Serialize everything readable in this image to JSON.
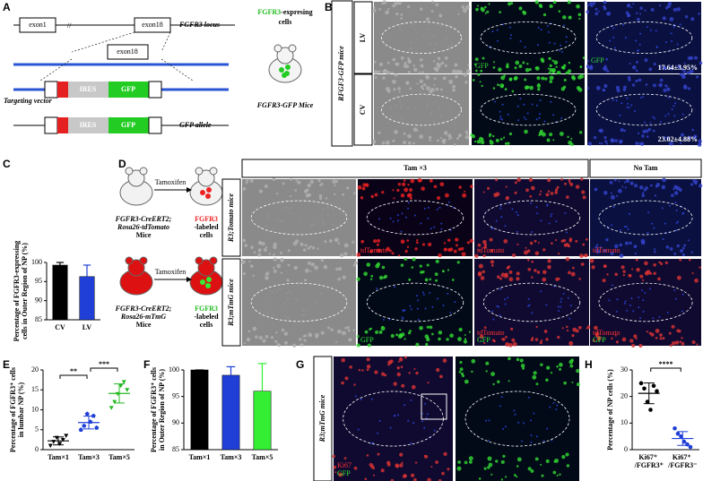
{
  "panel_labels": [
    "A",
    "B",
    "C",
    "D",
    "E",
    "F",
    "G",
    "H"
  ],
  "panel_a": {
    "exon1": "exon1",
    "exon18": "exon18",
    "locus": "FGFR3 locus",
    "exon18_vector": "exon18",
    "ires": [
      "IRES",
      "IRES"
    ],
    "gfp": [
      "GFP",
      "GFP"
    ],
    "targeting_vector": "Targeting vector",
    "gfp_allele": "GFP allele",
    "cells": [
      "FGFR3",
      "-expresing",
      "cells"
    ],
    "mice": "FGFR3-GFP Mice"
  },
  "panel_b": {
    "side_label": "RFGF3-GFP mice",
    "rows": [
      "LV",
      "CV"
    ],
    "channels": [
      "GFP",
      "GFP"
    ],
    "stats": [
      "17.64±3.95%",
      "23.02±4.88%"
    ]
  },
  "panel_d": {
    "mouse1": [
      "FGFR3-CreERT2;",
      "Rosa26-tdTomato",
      "Mice"
    ],
    "mouse2": [
      "FGFR3-CreERT2;",
      "Rosa26-mTmG",
      "Mice"
    ],
    "tamoxifen": [
      "Tamoxifen",
      "Tamoxifen"
    ],
    "labeled1": [
      "FGFR3",
      "-labeled",
      "cells"
    ],
    "labeled2": [
      "FGFR3",
      "-labeled",
      "cells"
    ],
    "headers": [
      "Tam ×3",
      "No Tam"
    ],
    "rows": [
      "R3;Tomato mice",
      "R3;mTmG mice"
    ],
    "row1_channels": [
      [
        "tdTomato"
      ],
      [
        "tdTomato"
      ],
      [
        "tdTomato"
      ]
    ],
    "row2_channels": [
      [
        "GFP"
      ],
      [
        "tdTomato",
        "GFP"
      ],
      [
        "tdTomato",
        "GFP"
      ]
    ]
  },
  "panel_g": {
    "side_label": "R3;mTmG mice",
    "channels": [
      "Ki67",
      "GFP"
    ]
  },
  "chart_data": [
    {
      "type": "bar",
      "y_label": [
        "Percentage of FGFR3-expressing",
        "cells in Outer Region of NP (%)"
      ],
      "categories": [
        "CV",
        "LV"
      ],
      "values": [
        99.3,
        96.3
      ],
      "errors": [
        0.7,
        3.0
      ],
      "colors": [
        "#000000",
        "#1f3fd6"
      ],
      "ylim": [
        85,
        100
      ],
      "yticks": [
        85,
        90,
        95,
        100
      ]
    },
    {
      "type": "strip",
      "y_label": [
        "Percentage of FGFR3⁺ cells",
        "in lumbar NP (%)"
      ],
      "categories": [
        "Tam×1",
        "Tam×3",
        "Tam×5"
      ],
      "points": [
        [
          1.0,
          2.0,
          3.0,
          1.5,
          2.5,
          3.5
        ],
        [
          5.0,
          6.0,
          9.0,
          7.0,
          8.5,
          5.5
        ],
        [
          10.5,
          12.0,
          14.0,
          16.0,
          17.0,
          15.0
        ]
      ],
      "means": [
        2.2,
        6.8,
        14.1
      ],
      "errors": [
        1.0,
        1.6,
        2.4
      ],
      "colors": [
        "#000000",
        "#1f3fd6",
        "#22b822"
      ],
      "ylim": [
        0,
        20
      ],
      "yticks": [
        0,
        5,
        10,
        15,
        20
      ],
      "annotations": [
        "**",
        "***"
      ]
    },
    {
      "type": "bar",
      "y_label": [
        "Percentage of FGFR3⁺ cells",
        "in Outer Region of NP (%)"
      ],
      "categories": [
        "Tam×1",
        "Tam×3",
        "Tam×5"
      ],
      "values": [
        100,
        99,
        96
      ],
      "errors": [
        0,
        1.6,
        5.2
      ],
      "colors": [
        "#000000",
        "#1f3fd6",
        "#33ee33"
      ],
      "ylim": [
        85,
        100
      ],
      "yticks": [
        85,
        90,
        95,
        100
      ]
    },
    {
      "type": "strip",
      "y_label": [
        "Percentage of NP cells (%)"
      ],
      "categories": [
        "Ki67⁺ /FGFR3⁺",
        "Ki67⁺ /FGFR3⁻"
      ],
      "points": [
        [
          25,
          23,
          18,
          15,
          24,
          22
        ],
        [
          8,
          6,
          5,
          3,
          2,
          1
        ]
      ],
      "means": [
        21.2,
        4.2
      ],
      "errors": [
        3.9,
        2.6
      ],
      "colors": [
        "#000000",
        "#1f3fd6"
      ],
      "ylim": [
        0,
        30
      ],
      "yticks": [
        0,
        10,
        20,
        30
      ],
      "annotations": [
        "****"
      ]
    }
  ]
}
